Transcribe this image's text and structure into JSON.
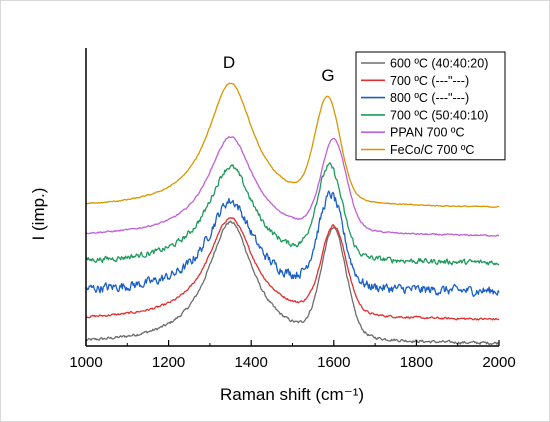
{
  "chart_data": {
    "type": "line",
    "xlabel": "Raman shift (cm⁻¹)",
    "ylabel": "I (imp.)",
    "xlim": [
      1000,
      2000
    ],
    "ylim": [
      0,
      105
    ],
    "x_ticks": [
      "1000",
      "1200",
      "1400",
      "1600",
      "1800",
      "2000"
    ],
    "grid": false,
    "legend_position": "top-right",
    "annotations": [
      {
        "text": "D",
        "x": 1340
      },
      {
        "text": "G",
        "x": 1590
      }
    ],
    "series": [
      {
        "name": "600 ºC (40:40:20)",
        "color": "#6d6d6d",
        "baseline": 0.5,
        "d_height": 43,
        "g_height": 38,
        "g_pos": 1600,
        "noise": 0.8,
        "values": [
          [
            1000,
            0.5
          ],
          [
            1100,
            2
          ],
          [
            1200,
            7
          ],
          [
            1300,
            30
          ],
          [
            1350,
            43.5
          ],
          [
            1400,
            32
          ],
          [
            1480,
            19
          ],
          [
            1530,
            23
          ],
          [
            1600,
            39
          ],
          [
            1650,
            18
          ],
          [
            1700,
            3
          ],
          [
            1800,
            1
          ],
          [
            2000,
            0.5
          ]
        ]
      },
      {
        "name": "700 ºC (---\"---)",
        "color": "#e03030",
        "baseline": 9,
        "d_height": 36,
        "g_height": 31,
        "g_pos": 1600,
        "noise": 0.6,
        "values": [
          [
            1000,
            9
          ],
          [
            1200,
            17
          ],
          [
            1300,
            36
          ],
          [
            1350,
            45
          ],
          [
            1400,
            38
          ],
          [
            1480,
            27
          ],
          [
            1550,
            32
          ],
          [
            1600,
            40
          ],
          [
            1680,
            14
          ],
          [
            1800,
            9.5
          ],
          [
            2000,
            9
          ]
        ]
      },
      {
        "name": "800 ºC (---\"---)",
        "color": "#1a5fc7",
        "baseline": 19,
        "d_height": 32,
        "g_height": 32,
        "g_pos": 1593,
        "noise": 2.6,
        "values": [
          [
            1000,
            19
          ],
          [
            1200,
            26
          ],
          [
            1300,
            44
          ],
          [
            1350,
            51
          ],
          [
            1400,
            42
          ],
          [
            1480,
            34
          ],
          [
            1550,
            40
          ],
          [
            1593,
            51
          ],
          [
            1680,
            22
          ],
          [
            1800,
            19
          ],
          [
            2000,
            19
          ]
        ]
      },
      {
        "name": "700 ºC (50:40:10)",
        "color": "#1f9a5c",
        "baseline": 29,
        "d_height": 34,
        "g_height": 32,
        "g_pos": 1590,
        "noise": 1.5,
        "values": [
          [
            1000,
            29
          ],
          [
            1200,
            37
          ],
          [
            1300,
            55
          ],
          [
            1350,
            63
          ],
          [
            1400,
            54
          ],
          [
            1480,
            43
          ],
          [
            1550,
            50
          ],
          [
            1590,
            61
          ],
          [
            1680,
            32
          ],
          [
            1800,
            29
          ],
          [
            2000,
            29
          ]
        ]
      },
      {
        "name": "PPAN 700 ºC",
        "color": "#c060d8",
        "baseline": 38.5,
        "d_height": 35,
        "g_height": 32,
        "g_pos": 1600,
        "noise": 0.4,
        "values": [
          [
            1000,
            38.5
          ],
          [
            1200,
            55
          ],
          [
            1300,
            69
          ],
          [
            1350,
            73
          ],
          [
            1400,
            69
          ],
          [
            1480,
            63
          ],
          [
            1550,
            68
          ],
          [
            1600,
            71
          ],
          [
            1700,
            45
          ],
          [
            1800,
            39
          ],
          [
            2000,
            38.5
          ]
        ]
      },
      {
        "name": "FeCo/C 700 ºC",
        "color": "#d99600",
        "baseline": 48.5,
        "d_height": 44,
        "g_height": 36,
        "g_pos": 1585,
        "noise": 0.3,
        "values": [
          [
            1000,
            48.5
          ],
          [
            1200,
            65
          ],
          [
            1300,
            85
          ],
          [
            1340,
            93
          ],
          [
            1400,
            82
          ],
          [
            1480,
            74
          ],
          [
            1550,
            82
          ],
          [
            1585,
            88
          ],
          [
            1680,
            55
          ],
          [
            1800,
            49
          ],
          [
            2000,
            48.5
          ]
        ]
      }
    ]
  }
}
